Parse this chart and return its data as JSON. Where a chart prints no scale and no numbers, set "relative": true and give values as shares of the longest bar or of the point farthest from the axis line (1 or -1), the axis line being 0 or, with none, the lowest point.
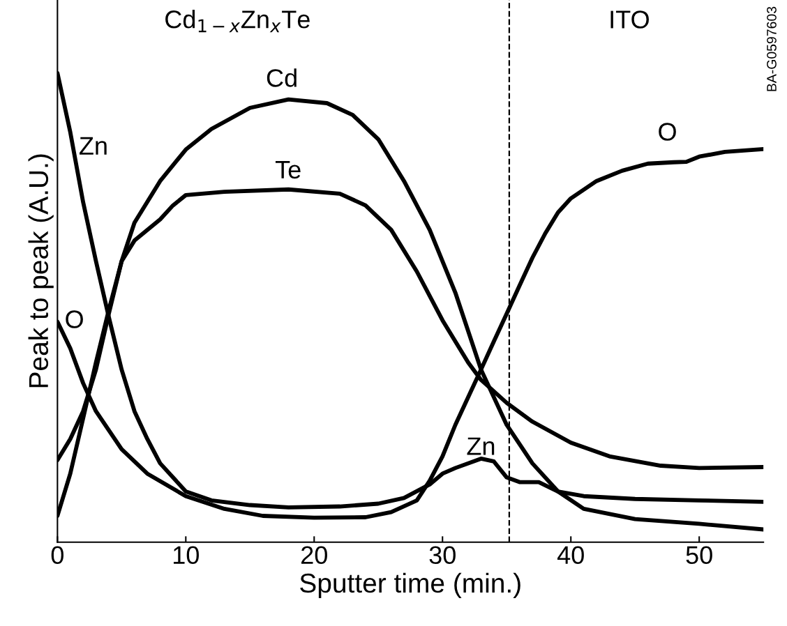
{
  "chart_data": {
    "type": "line",
    "relative": true,
    "xlabel": "Sputter time (min.)",
    "ylabel": "Peak to peak (A.U.)",
    "xlim": [
      0,
      55
    ],
    "xticks": [
      0,
      10,
      20,
      30,
      40,
      50
    ],
    "tick_labels": "x",
    "grid": false,
    "legend": false,
    "line_style": "solid",
    "marker": "none",
    "series": [
      {
        "color": "#000000",
        "x": [
          0,
          1,
          2,
          3,
          4,
          5,
          6,
          7,
          8,
          10,
          12,
          15,
          18,
          22,
          25,
          27,
          29,
          30,
          31,
          33,
          34,
          35,
          36,
          37.5,
          39,
          41,
          45,
          50,
          55
        ],
        "values": [
          1.0,
          0.874,
          0.725,
          0.599,
          0.48,
          0.368,
          0.279,
          0.22,
          0.168,
          0.108,
          0.089,
          0.079,
          0.074,
          0.076,
          0.082,
          0.094,
          0.123,
          0.146,
          0.158,
          0.178,
          0.172,
          0.138,
          0.128,
          0.128,
          0.108,
          0.098,
          0.092,
          0.089,
          0.086
        ]
      },
      {
        "color": "#000000",
        "x": [
          0,
          1,
          2,
          3,
          5,
          7,
          10,
          13,
          16,
          20,
          24,
          26,
          28,
          29,
          30,
          31,
          32,
          33,
          34,
          35,
          36,
          37,
          38,
          39,
          40,
          42,
          44,
          46,
          48,
          49,
          50,
          52,
          55
        ],
        "values": [
          0.47,
          0.413,
          0.339,
          0.279,
          0.198,
          0.146,
          0.098,
          0.071,
          0.056,
          0.052,
          0.053,
          0.064,
          0.089,
          0.131,
          0.183,
          0.25,
          0.309,
          0.368,
          0.428,
          0.487,
          0.547,
          0.606,
          0.658,
          0.703,
          0.733,
          0.77,
          0.792,
          0.807,
          0.81,
          0.811,
          0.822,
          0.832,
          0.838
        ]
      },
      {
        "color": "#000000",
        "x": [
          0,
          1,
          2,
          3,
          4,
          5,
          6,
          8,
          10,
          12,
          15,
          18,
          21,
          23,
          25,
          27,
          29,
          31,
          33,
          35,
          37,
          39,
          41,
          45,
          50,
          55
        ],
        "values": [
          0.056,
          0.146,
          0.264,
          0.383,
          0.495,
          0.599,
          0.681,
          0.77,
          0.837,
          0.881,
          0.926,
          0.944,
          0.936,
          0.911,
          0.859,
          0.77,
          0.666,
          0.532,
          0.368,
          0.25,
          0.168,
          0.108,
          0.071,
          0.049,
          0.039,
          0.027
        ]
      },
      {
        "color": "#000000",
        "x": [
          0,
          1,
          2,
          3,
          4,
          5,
          6,
          8,
          9,
          10,
          13,
          18,
          22,
          24,
          26,
          28,
          30,
          32,
          33,
          35,
          37,
          40,
          43,
          47,
          50,
          55
        ],
        "values": [
          0.175,
          0.22,
          0.279,
          0.368,
          0.487,
          0.599,
          0.643,
          0.688,
          0.718,
          0.74,
          0.747,
          0.752,
          0.743,
          0.718,
          0.666,
          0.577,
          0.473,
          0.383,
          0.346,
          0.297,
          0.257,
          0.212,
          0.183,
          0.163,
          0.158,
          0.16
        ]
      }
    ],
    "ref_lines": [
      {
        "axis": "x",
        "value": 35.2,
        "line_style": "dashed",
        "color": "#000000"
      }
    ],
    "annotations": [
      "Cd",
      "Te",
      "Zn",
      "O",
      "Zn",
      "O",
      "Cd$_{1−x}$Zn$_{x}$Te",
      "ITO",
      "BA-G0597603"
    ]
  }
}
